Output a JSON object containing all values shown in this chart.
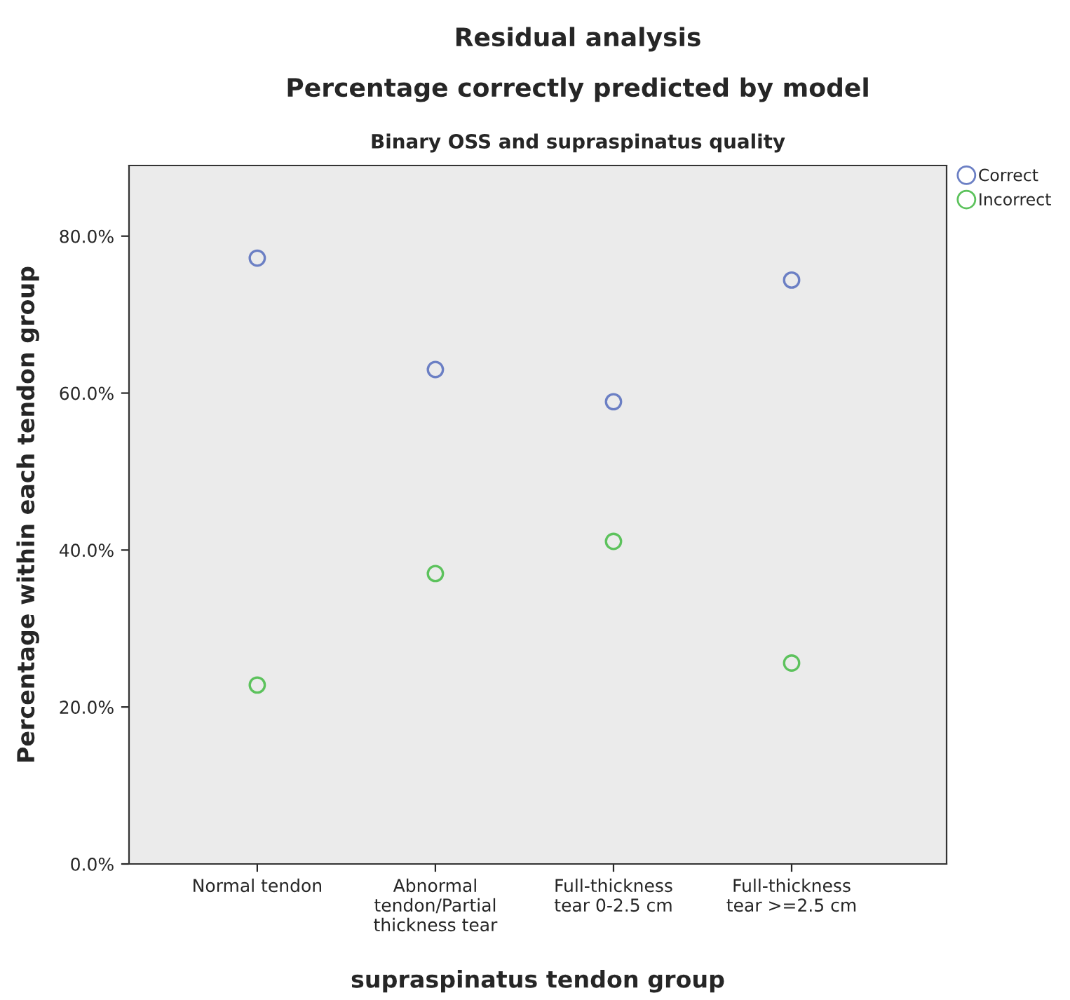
{
  "chart_data": {
    "type": "scatter",
    "title": "Residual analysis",
    "subtitle": "Percentage correctly predicted by model",
    "annotations": [
      "Binary OSS and supraspinatus quality"
    ],
    "xlabel": "supraspinatus tendon group",
    "ylabel": "Percentage within each tendon group",
    "categories": [
      "Normal tendon",
      "Abnormal\ntendon/Partial\nthickness tear",
      "Full-thickness\ntear 0-2.5 cm",
      "Full-thickness\ntear >=2.5 cm"
    ],
    "series": [
      {
        "name": "Correct",
        "color": "#6b7fc4",
        "values": [
          77.2,
          63.0,
          58.9,
          74.4
        ]
      },
      {
        "name": "Incorrect",
        "color": "#5cc25c",
        "values": [
          22.8,
          37.0,
          41.1,
          25.6
        ]
      }
    ],
    "ylim": [
      0,
      89
    ],
    "yticks": [
      {
        "value": 0,
        "label": "0.0%"
      },
      {
        "value": 20,
        "label": "20.0%"
      },
      {
        "value": 40,
        "label": "40.0%"
      },
      {
        "value": 60,
        "label": "60.0%"
      },
      {
        "value": 80,
        "label": "80.0%"
      }
    ],
    "marker": "circle",
    "grid": false,
    "legend": "top right"
  }
}
